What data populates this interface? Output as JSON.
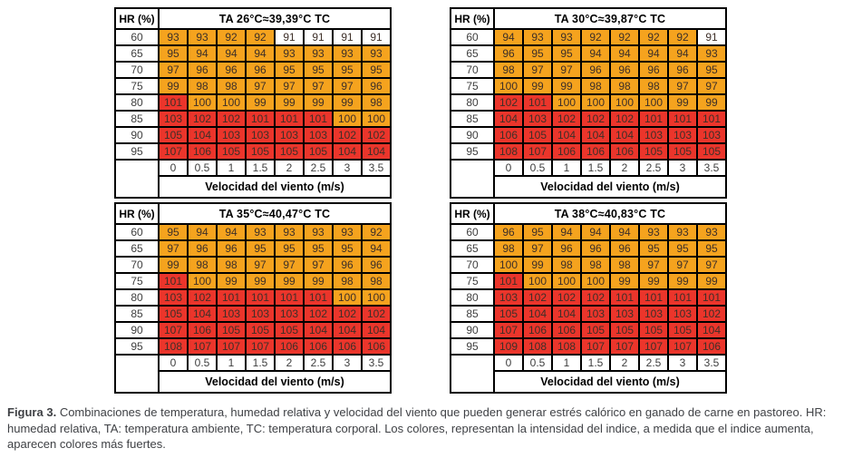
{
  "styles": {
    "cell_orange": "#F5A31E",
    "cell_red": "#EB352B",
    "cell_white": "#FFFFFF",
    "border_color": "#000000",
    "caption_text_color": "#3F4145"
  },
  "color_rules": {
    "red_min": 101,
    "orange_min": 92
  },
  "figure": {
    "tables": [
      {
        "corner_label": "HR (%)",
        "title": "TA 26°C≈39,39°C TC",
        "hr_values": [
          60,
          65,
          70,
          75,
          80,
          85,
          90,
          95
        ],
        "wind_speeds": [
          "0",
          "0.5",
          "1",
          "1.5",
          "2",
          "2.5",
          "3",
          "3.5"
        ],
        "wind_label": "Velocidad del viento (m/s)",
        "rows": [
          [
            93,
            93,
            92,
            92,
            91,
            91,
            91,
            91
          ],
          [
            95,
            94,
            94,
            94,
            93,
            93,
            93,
            93
          ],
          [
            97,
            96,
            96,
            96,
            95,
            95,
            95,
            95
          ],
          [
            99,
            98,
            98,
            97,
            97,
            97,
            97,
            96
          ],
          [
            101,
            100,
            100,
            99,
            99,
            99,
            99,
            98
          ],
          [
            103,
            102,
            102,
            101,
            101,
            101,
            100,
            100
          ],
          [
            105,
            104,
            103,
            103,
            103,
            103,
            102,
            102
          ],
          [
            107,
            106,
            105,
            105,
            105,
            105,
            104,
            104
          ]
        ]
      },
      {
        "corner_label": "HR (%)",
        "title": "TA 30°C≈39,87°C TC",
        "hr_values": [
          60,
          65,
          70,
          75,
          80,
          85,
          90,
          95
        ],
        "wind_speeds": [
          "0",
          "0.5",
          "1",
          "1.5",
          "2",
          "2.5",
          "3",
          "3.5"
        ],
        "wind_label": "Velocidad del viento (m/s)",
        "rows": [
          [
            94,
            93,
            93,
            92,
            92,
            92,
            92,
            91
          ],
          [
            96,
            95,
            95,
            94,
            94,
            94,
            94,
            93
          ],
          [
            98,
            97,
            97,
            96,
            96,
            96,
            96,
            95
          ],
          [
            100,
            99,
            99,
            98,
            98,
            98,
            97,
            97
          ],
          [
            102,
            101,
            100,
            100,
            100,
            100,
            99,
            99
          ],
          [
            104,
            103,
            102,
            102,
            102,
            101,
            101,
            101
          ],
          [
            106,
            105,
            104,
            104,
            104,
            103,
            103,
            103
          ],
          [
            108,
            107,
            106,
            106,
            106,
            105,
            105,
            105
          ]
        ]
      },
      {
        "corner_label": "HR (%)",
        "title": "TA 35°C≈40,47°C TC",
        "hr_values": [
          60,
          65,
          70,
          75,
          80,
          85,
          90,
          95
        ],
        "wind_speeds": [
          "0",
          "0.5",
          "1",
          "1.5",
          "2",
          "2.5",
          "3",
          "3.5"
        ],
        "wind_label": "Velocidad del viento (m/s)",
        "rows": [
          [
            95,
            94,
            94,
            93,
            93,
            93,
            93,
            92
          ],
          [
            97,
            96,
            96,
            95,
            95,
            95,
            95,
            94
          ],
          [
            99,
            98,
            98,
            97,
            97,
            97,
            96,
            96
          ],
          [
            101,
            100,
            99,
            99,
            99,
            99,
            98,
            98
          ],
          [
            103,
            102,
            101,
            101,
            101,
            101,
            100,
            100
          ],
          [
            105,
            104,
            103,
            103,
            103,
            102,
            102,
            102
          ],
          [
            107,
            106,
            105,
            105,
            105,
            104,
            104,
            104
          ],
          [
            108,
            107,
            107,
            107,
            106,
            106,
            106,
            106
          ]
        ]
      },
      {
        "corner_label": "HR (%)",
        "title": "TA 38°C≈40,83°C TC",
        "hr_values": [
          60,
          65,
          70,
          75,
          80,
          85,
          90,
          95
        ],
        "wind_speeds": [
          "0",
          "0.5",
          "1",
          "1.5",
          "2",
          "2.5",
          "3",
          "3.5"
        ],
        "wind_label": "Velocidad del viento (m/s)",
        "rows": [
          [
            96,
            95,
            94,
            94,
            94,
            93,
            93,
            93
          ],
          [
            98,
            97,
            96,
            96,
            96,
            95,
            95,
            95
          ],
          [
            100,
            99,
            98,
            98,
            98,
            97,
            97,
            97
          ],
          [
            101,
            100,
            100,
            100,
            99,
            99,
            99,
            99
          ],
          [
            103,
            102,
            102,
            102,
            101,
            101,
            101,
            101
          ],
          [
            105,
            104,
            104,
            103,
            103,
            103,
            103,
            102
          ],
          [
            107,
            106,
            106,
            105,
            105,
            105,
            105,
            104
          ],
          [
            109,
            108,
            108,
            107,
            107,
            107,
            107,
            106
          ]
        ]
      }
    ],
    "caption": {
      "label": "Figura 3.",
      "text": "Combinaciones de temperatura, humedad relativa y velocidad del viento que pueden generar estrés calórico en ganado de carne en pastoreo. HR: humedad relativa, TA: temperatura ambiente, TC: temperatura corporal. Los colores, representan la intensidad del indice, a medida que el indice aumenta, aparecen colores más fuertes."
    }
  }
}
